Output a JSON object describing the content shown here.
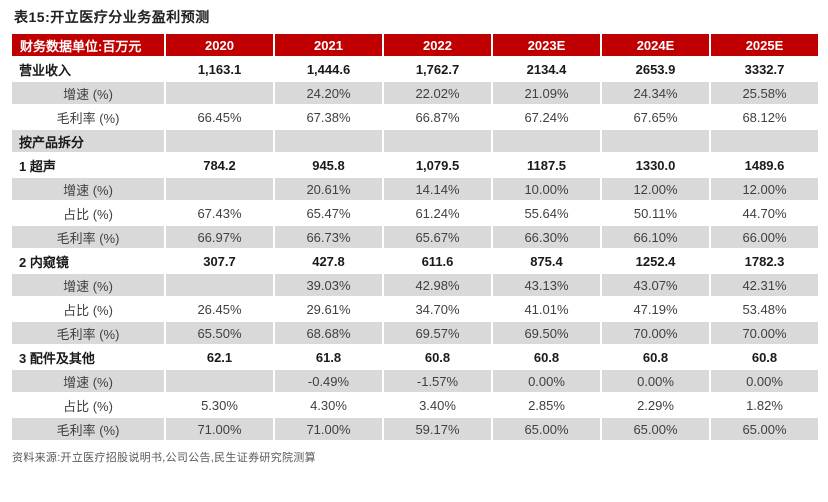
{
  "title": "表15:开立医疗分业务盈利预测",
  "source": "资料来源:开立医疗招股说明书,公司公告,民生证券研究院测算",
  "colors": {
    "header_red": "#C00000",
    "stripe_gray": "#D9D9D9",
    "header_text": "#ffffff",
    "body_text": "#404040"
  },
  "chart_data": {
    "type": "table",
    "title": "表15:开立医疗分业务盈利预测",
    "unit_label": "财务数据单位:百万元",
    "years": [
      "2020",
      "2021",
      "2022",
      "2023E",
      "2024E",
      "2025E"
    ],
    "rows": [
      {
        "label": "营业收入",
        "bold": true,
        "sub": false,
        "values": [
          "1,163.1",
          "1,444.6",
          "1,762.7",
          "2134.4",
          "2653.9",
          "3332.7"
        ]
      },
      {
        "label": "增速 (%)",
        "bold": false,
        "sub": true,
        "values": [
          "",
          "24.20%",
          "22.02%",
          "21.09%",
          "24.34%",
          "25.58%"
        ]
      },
      {
        "label": "毛利率 (%)",
        "bold": false,
        "sub": true,
        "values": [
          "66.45%",
          "67.38%",
          "66.87%",
          "67.24%",
          "67.65%",
          "68.12%"
        ]
      },
      {
        "label": "按产品拆分",
        "bold": true,
        "sub": false,
        "values": [
          "",
          "",
          "",
          "",
          "",
          ""
        ]
      },
      {
        "label": "1 超声",
        "bold": true,
        "sub": false,
        "values": [
          "784.2",
          "945.8",
          "1,079.5",
          "1187.5",
          "1330.0",
          "1489.6"
        ]
      },
      {
        "label": "增速 (%)",
        "bold": false,
        "sub": true,
        "values": [
          "",
          "20.61%",
          "14.14%",
          "10.00%",
          "12.00%",
          "12.00%"
        ]
      },
      {
        "label": "占比 (%)",
        "bold": false,
        "sub": true,
        "values": [
          "67.43%",
          "65.47%",
          "61.24%",
          "55.64%",
          "50.11%",
          "44.70%"
        ]
      },
      {
        "label": "毛利率 (%)",
        "bold": false,
        "sub": true,
        "values": [
          "66.97%",
          "66.73%",
          "65.67%",
          "66.30%",
          "66.10%",
          "66.00%"
        ]
      },
      {
        "label": "2 内窥镜",
        "bold": true,
        "sub": false,
        "values": [
          "307.7",
          "427.8",
          "611.6",
          "875.4",
          "1252.4",
          "1782.3"
        ]
      },
      {
        "label": "增速 (%)",
        "bold": false,
        "sub": true,
        "values": [
          "",
          "39.03%",
          "42.98%",
          "43.13%",
          "43.07%",
          "42.31%"
        ]
      },
      {
        "label": "占比 (%)",
        "bold": false,
        "sub": true,
        "values": [
          "26.45%",
          "29.61%",
          "34.70%",
          "41.01%",
          "47.19%",
          "53.48%"
        ]
      },
      {
        "label": "毛利率 (%)",
        "bold": false,
        "sub": true,
        "values": [
          "65.50%",
          "68.68%",
          "69.57%",
          "69.50%",
          "70.00%",
          "70.00%"
        ]
      },
      {
        "label": "3 配件及其他",
        "bold": true,
        "sub": false,
        "values": [
          "62.1",
          "61.8",
          "60.8",
          "60.8",
          "60.8",
          "60.8"
        ]
      },
      {
        "label": "增速 (%)",
        "bold": false,
        "sub": true,
        "values": [
          "",
          "-0.49%",
          "-1.57%",
          "0.00%",
          "0.00%",
          "0.00%"
        ]
      },
      {
        "label": "占比 (%)",
        "bold": false,
        "sub": true,
        "values": [
          "5.30%",
          "4.30%",
          "3.40%",
          "2.85%",
          "2.29%",
          "1.82%"
        ]
      },
      {
        "label": "毛利率 (%)",
        "bold": false,
        "sub": true,
        "values": [
          "71.00%",
          "71.00%",
          "59.17%",
          "65.00%",
          "65.00%",
          "65.00%"
        ]
      }
    ]
  }
}
